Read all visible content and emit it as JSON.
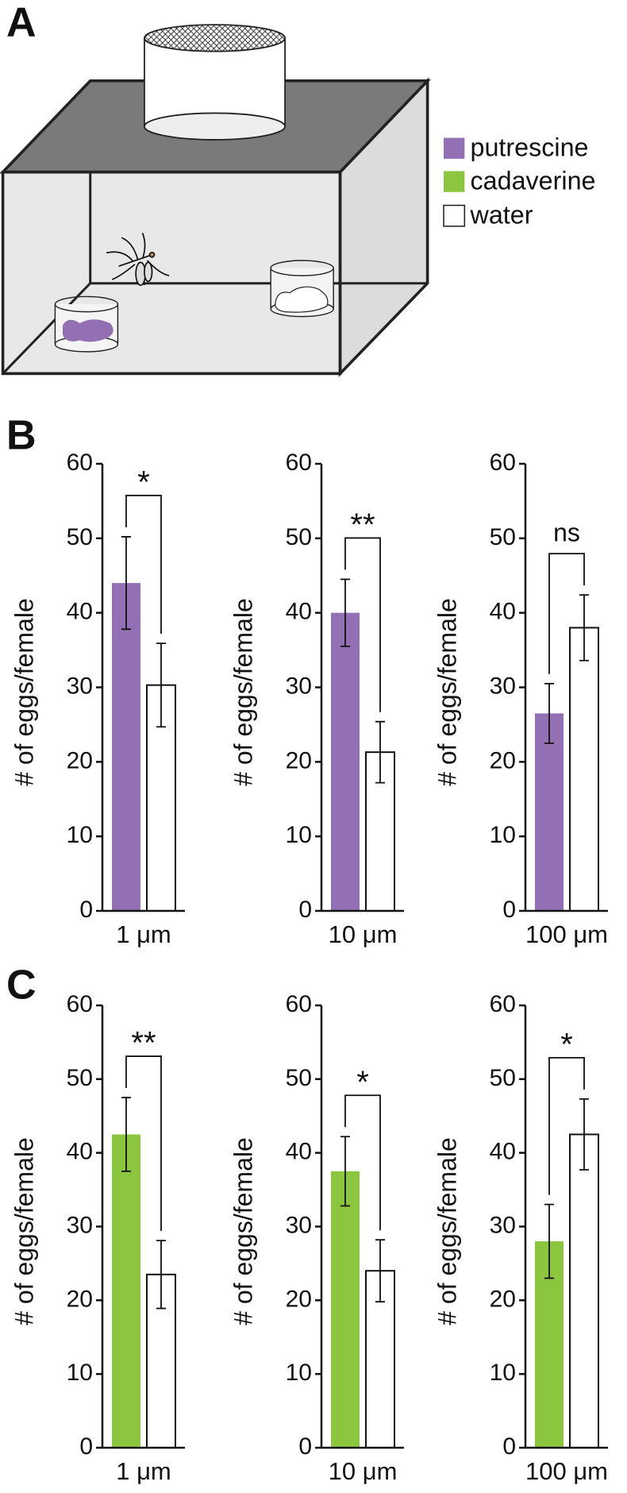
{
  "panel_labels": [
    "A",
    "B",
    "C"
  ],
  "legend": [
    {
      "name": "putrescine",
      "color": "#9370b4"
    },
    {
      "name": "cadaverine",
      "color": "#8cc63f"
    },
    {
      "name": "water",
      "color": "#ffffff"
    }
  ],
  "chart_data": [
    {
      "type": "bar",
      "ylabel": "# of eggs/female",
      "xlabel": "1 μm",
      "annotation": "*",
      "categories": [
        null,
        null
      ],
      "values": [
        44,
        30.3
      ],
      "errors": [
        6.2,
        5.6
      ],
      "colors": [
        "#9370b4",
        "#ffffff"
      ],
      "ylim": [
        0,
        60
      ],
      "yticks": [
        0,
        10,
        20,
        30,
        40,
        50,
        60
      ]
    },
    {
      "type": "bar",
      "ylabel": "# of eggs/female",
      "xlabel": "10 μm",
      "annotation": "**",
      "categories": [
        null,
        null
      ],
      "values": [
        40,
        21.3
      ],
      "errors": [
        4.5,
        4.1
      ],
      "colors": [
        "#9370b4",
        "#ffffff"
      ],
      "ylim": [
        0,
        60
      ],
      "yticks": [
        0,
        10,
        20,
        30,
        40,
        50,
        60
      ]
    },
    {
      "type": "bar",
      "ylabel": "# of eggs/female",
      "xlabel": "100 μm",
      "annotation": "ns",
      "categories": [
        null,
        null
      ],
      "values": [
        26.5,
        38
      ],
      "errors": [
        4,
        4.4
      ],
      "colors": [
        "#9370b4",
        "#ffffff"
      ],
      "ylim": [
        0,
        60
      ],
      "yticks": [
        0,
        10,
        20,
        30,
        40,
        50,
        60
      ]
    },
    {
      "type": "bar",
      "ylabel": "# of eggs/female",
      "xlabel": "1 μm",
      "annotation": "**",
      "categories": [
        null,
        null
      ],
      "values": [
        42.5,
        23.5
      ],
      "errors": [
        5,
        4.6
      ],
      "colors": [
        "#8cc63f",
        "#ffffff"
      ],
      "ylim": [
        0,
        60
      ],
      "yticks": [
        0,
        10,
        20,
        30,
        40,
        50,
        60
      ]
    },
    {
      "type": "bar",
      "ylabel": "# of eggs/female",
      "xlabel": "10 μm",
      "annotation": "*",
      "categories": [
        null,
        null
      ],
      "values": [
        37.5,
        24
      ],
      "errors": [
        4.7,
        4.2
      ],
      "colors": [
        "#8cc63f",
        "#ffffff"
      ],
      "ylim": [
        0,
        60
      ],
      "yticks": [
        0,
        10,
        20,
        30,
        40,
        50,
        60
      ]
    },
    {
      "type": "bar",
      "ylabel": "# of eggs/female",
      "xlabel": "100 μm",
      "annotation": "*",
      "categories": [
        null,
        null
      ],
      "values": [
        28,
        42.5
      ],
      "errors": [
        5,
        4.8
      ],
      "colors": [
        "#8cc63f",
        "#ffffff"
      ],
      "ylim": [
        0,
        60
      ],
      "yticks": [
        0,
        10,
        20,
        30,
        40,
        50,
        60
      ]
    }
  ]
}
